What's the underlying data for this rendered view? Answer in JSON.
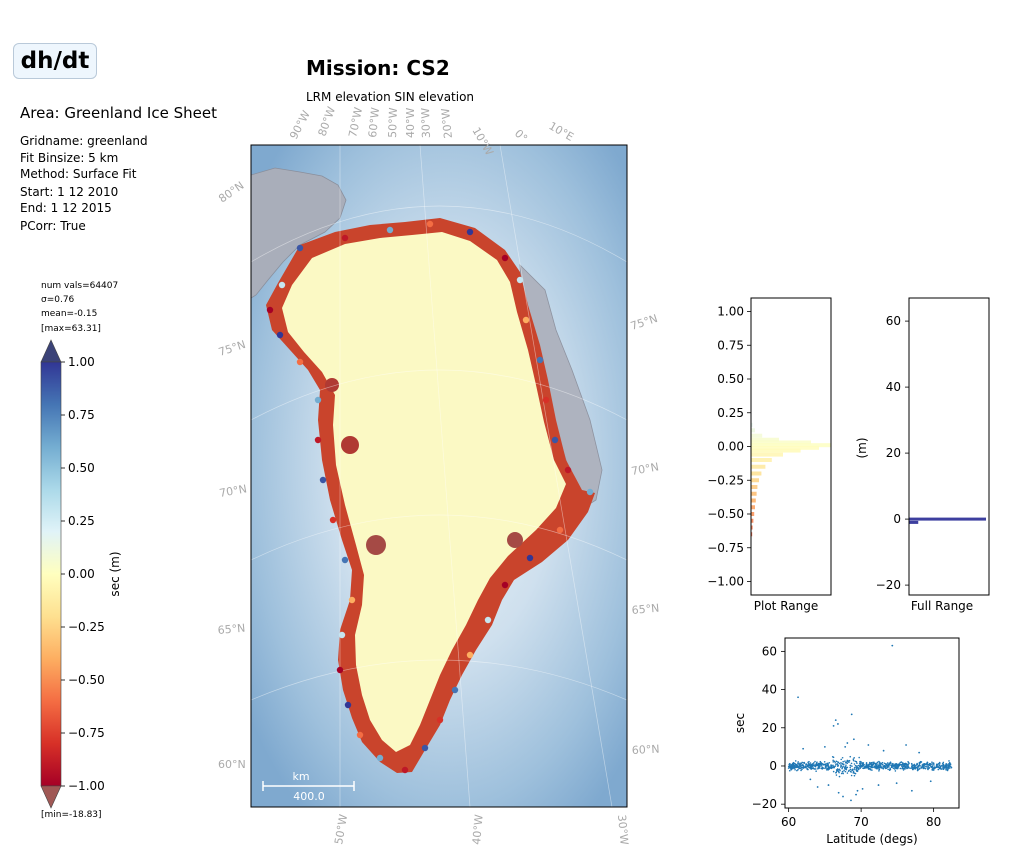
{
  "header": {
    "badge": "dh/dt",
    "area": "Area: Greenland Ice Sheet",
    "meta": [
      "Gridname: greenland",
      "Fit Binsize: 5 km",
      "Method: Surface Fit",
      "Start: 1 12 2010",
      "End: 1 12 2015",
      "PCorr: True"
    ]
  },
  "stats": {
    "num_vals": "num vals=64407",
    "sigma": "σ=0.76",
    "mean": "mean=-0.15",
    "max": "[max=63.31]",
    "min": "[min=-18.83]"
  },
  "mission": {
    "title": "Mission: CS2",
    "subtitle": "LRM elevation SIN elevation"
  },
  "colors": {
    "colormap": [
      "#a50026",
      "#d73027",
      "#f46d43",
      "#fdae61",
      "#fee090",
      "#ffffbf",
      "#e0f3f8",
      "#abd9e9",
      "#74add1",
      "#4575b4",
      "#313695"
    ],
    "over": "#3b4378",
    "under": "#a05855",
    "scatter": "#1f77b4",
    "fullrange_bar": "#3d3f9f"
  },
  "chart_data": [
    {
      "type": "map",
      "title": "Mission: CS2",
      "subtitle": "LRM elevation SIN elevation",
      "lat_labels": [
        "80°N",
        "75°N",
        "70°N",
        "65°N",
        "60°N"
      ],
      "lon_labels_top": [
        "90°W",
        "80°W",
        "70°W",
        "60°W",
        "50°W",
        "40°W",
        "30°W",
        "20°W",
        "10°W",
        "0°",
        "10°E"
      ],
      "lon_labels_bottom": [
        "50°W",
        "40°W",
        "30°W"
      ],
      "scale_bar": {
        "unit": "km",
        "value": "400.0"
      }
    },
    {
      "type": "colorbar",
      "label": "sec (m)",
      "ticks": [
        "1.00",
        "0.75",
        "0.50",
        "0.25",
        "0.00",
        "−0.25",
        "−0.50",
        "−0.75",
        "−1.00"
      ],
      "tick_values": [
        1.0,
        0.75,
        0.5,
        0.25,
        0.0,
        -0.25,
        -0.5,
        -0.75,
        -1.0
      ],
      "range": [
        -1.0,
        1.0
      ],
      "extend": "both"
    },
    {
      "type": "histogram",
      "xlabel": "Plot Range",
      "ylim": [
        -1.1,
        1.1
      ],
      "yticks": [
        "1.00",
        "0.75",
        "0.50",
        "0.25",
        "0.00",
        "−0.25",
        "−0.50",
        "−0.75",
        "−1.00"
      ],
      "ytick_values": [
        1.0,
        0.75,
        0.5,
        0.25,
        0.0,
        -0.25,
        -0.5,
        -0.75,
        -1.0
      ],
      "bins": [
        {
          "y": 0.16,
          "count": 0.02
        },
        {
          "y": 0.12,
          "count": 0.05
        },
        {
          "y": 0.08,
          "count": 0.14
        },
        {
          "y": 0.05,
          "count": 0.35
        },
        {
          "y": 0.03,
          "count": 0.75
        },
        {
          "y": 0.01,
          "count": 1.0
        },
        {
          "y": -0.01,
          "count": 0.85
        },
        {
          "y": -0.03,
          "count": 0.62
        },
        {
          "y": -0.06,
          "count": 0.4
        },
        {
          "y": -0.1,
          "count": 0.26
        },
        {
          "y": -0.15,
          "count": 0.18
        },
        {
          "y": -0.2,
          "count": 0.13
        },
        {
          "y": -0.25,
          "count": 0.1
        },
        {
          "y": -0.3,
          "count": 0.08
        },
        {
          "y": -0.35,
          "count": 0.07
        },
        {
          "y": -0.4,
          "count": 0.06
        },
        {
          "y": -0.45,
          "count": 0.05
        },
        {
          "y": -0.5,
          "count": 0.04
        },
        {
          "y": -0.55,
          "count": 0.03
        },
        {
          "y": -0.6,
          "count": 0.02
        },
        {
          "y": -0.65,
          "count": 0.015
        }
      ]
    },
    {
      "type": "histogram",
      "xlabel": "Full Range",
      "ylabel": "(m)",
      "ylim": [
        -23,
        67
      ],
      "yticks": [
        "60",
        "40",
        "20",
        "0",
        "−20"
      ],
      "ytick_values": [
        60,
        40,
        20,
        0,
        -20
      ],
      "bins": [
        {
          "y": 0,
          "count": 1.0
        },
        {
          "y": -1,
          "count": 0.12
        }
      ]
    },
    {
      "type": "scatter",
      "xlabel": "Latitude (degs)",
      "ylabel": "sec",
      "xlim": [
        59.5,
        83.5
      ],
      "ylim": [
        -22,
        67
      ],
      "xticks": [
        "60",
        "70",
        "80"
      ],
      "xtick_values": [
        60,
        70,
        80
      ],
      "yticks": [
        "60",
        "40",
        "20",
        "0",
        "−20"
      ],
      "ytick_values": [
        60,
        40,
        20,
        0,
        -20
      ],
      "band": {
        "x_range": [
          60,
          82.5
        ],
        "y_center": 0,
        "y_spread": 2
      },
      "outliers": [
        {
          "x": 61.3,
          "y": 36
        },
        {
          "x": 74.3,
          "y": 63
        },
        {
          "x": 66.5,
          "y": 24
        },
        {
          "x": 66.2,
          "y": 21
        },
        {
          "x": 66.8,
          "y": 22
        },
        {
          "x": 68.7,
          "y": 27
        },
        {
          "x": 69.0,
          "y": 14
        },
        {
          "x": 67.5,
          "y": -16
        },
        {
          "x": 68.6,
          "y": -18
        },
        {
          "x": 66.9,
          "y": -14
        },
        {
          "x": 69.5,
          "y": -13
        },
        {
          "x": 65.5,
          "y": -10
        },
        {
          "x": 64.0,
          "y": -11
        },
        {
          "x": 77.0,
          "y": -13
        },
        {
          "x": 62.0,
          "y": 9
        },
        {
          "x": 76.2,
          "y": 11
        },
        {
          "x": 71.0,
          "y": 11
        },
        {
          "x": 65.0,
          "y": 10
        },
        {
          "x": 67.8,
          "y": 10
        },
        {
          "x": 70.2,
          "y": -12
        },
        {
          "x": 72.4,
          "y": -10
        },
        {
          "x": 74.9,
          "y": -9
        },
        {
          "x": 63.0,
          "y": -7
        },
        {
          "x": 79.6,
          "y": -8
        },
        {
          "x": 73.1,
          "y": 8
        },
        {
          "x": 78.0,
          "y": 7
        },
        {
          "x": 69.3,
          "y": -15
        },
        {
          "x": 68.1,
          "y": 12
        }
      ]
    }
  ]
}
